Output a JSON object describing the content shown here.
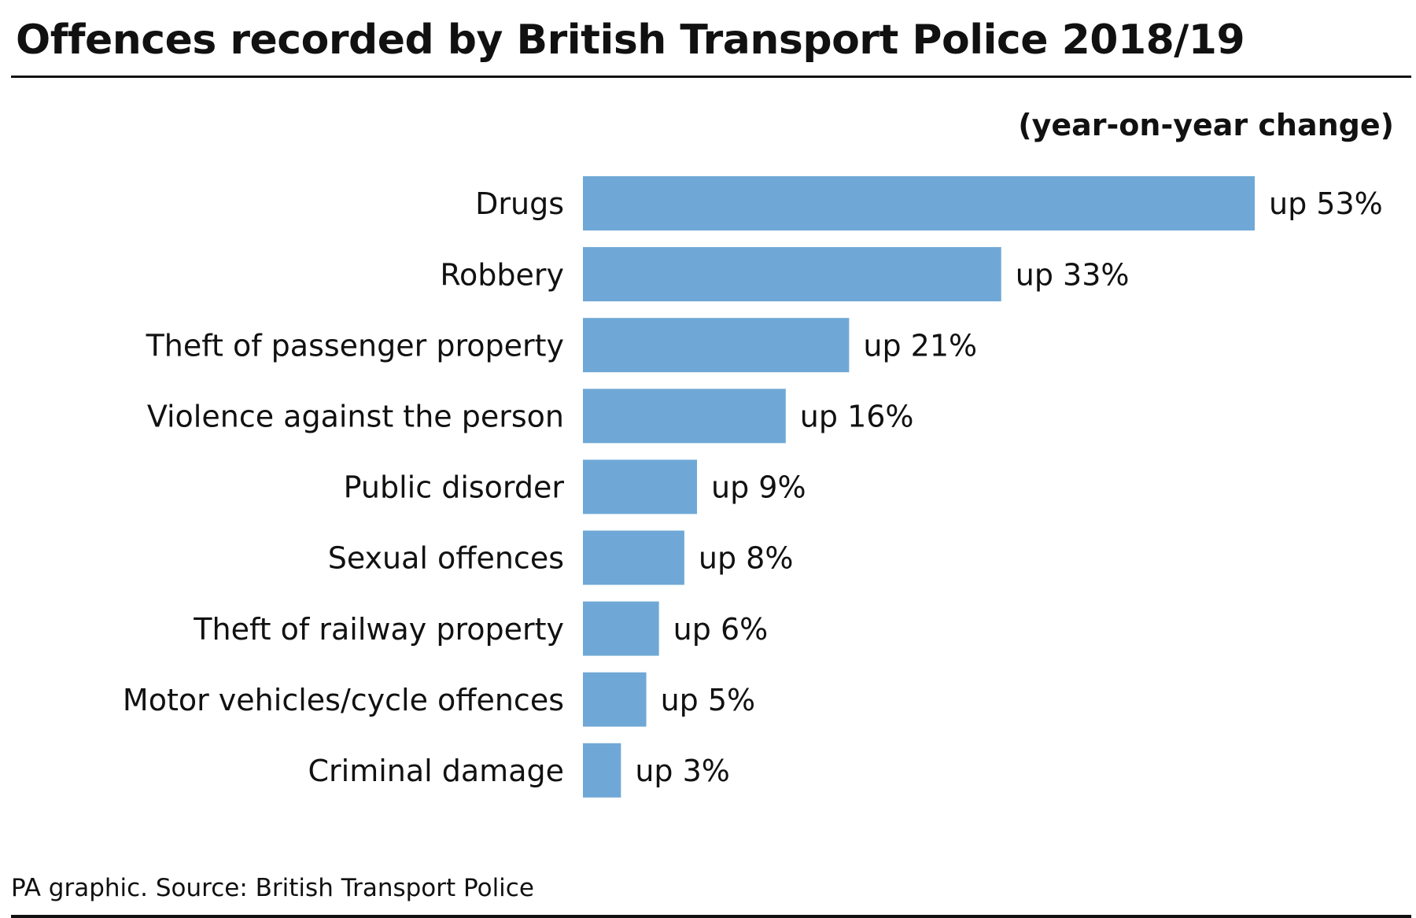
{
  "title": "Offences recorded by British Transport Police 2018/19",
  "subtitle": "(year-on-year change)",
  "footer": "PA graphic. Source: British Transport Police",
  "colors": {
    "bar": "#6fa8d6",
    "text": "#111111",
    "rule": "#111111"
  },
  "chart_data": {
    "type": "bar",
    "orientation": "horizontal",
    "title": "Offences recorded by British Transport Police 2018/19",
    "subtitle": "(year-on-year change)",
    "unit": "%",
    "categories": [
      "Drugs",
      "Robbery",
      "Theft of passenger property",
      "Violence against the person",
      "Public disorder",
      "Sexual offences",
      "Theft of railway property",
      "Motor vehicles/cycle offences",
      "Criminal damage"
    ],
    "values": [
      53,
      33,
      21,
      16,
      9,
      8,
      6,
      5,
      3
    ],
    "data_labels": [
      "up 53%",
      "up 33%",
      "up 21%",
      "up 16%",
      "up 9%",
      "up 8%",
      "up 6%",
      "up 5%",
      "up 3%"
    ],
    "xlim": [
      0,
      53
    ],
    "grid": false,
    "legend": "none"
  }
}
